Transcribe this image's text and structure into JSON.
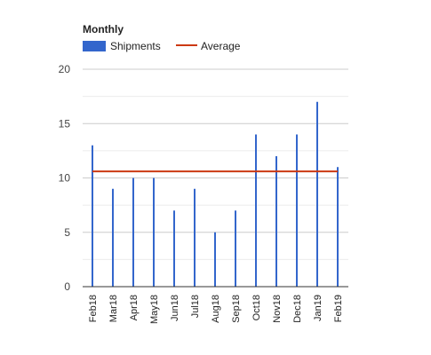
{
  "chart_data": {
    "type": "bar",
    "title": "Monthly",
    "categories": [
      "Feb18",
      "Mar18",
      "Apr18",
      "May18",
      "Jun18",
      "Jul18",
      "Aug18",
      "Sep18",
      "Oct18",
      "Nov18",
      "Dec18",
      "Jan19",
      "Feb19"
    ],
    "series": [
      {
        "name": "Shipments",
        "type": "bar",
        "color": "#3366cc",
        "values": [
          13,
          9,
          10,
          10,
          7,
          9,
          5,
          7,
          14,
          12,
          14,
          17,
          11
        ]
      },
      {
        "name": "Average",
        "type": "line",
        "color": "#cc3912",
        "values": [
          10.6,
          10.6,
          10.6,
          10.6,
          10.6,
          10.6,
          10.6,
          10.6,
          10.6,
          10.6,
          10.6,
          10.6,
          10.6
        ]
      }
    ],
    "ylim": [
      0,
      20
    ],
    "yticks": [
      0,
      5,
      10,
      15,
      20
    ],
    "grid": true,
    "legend_position": "top-left",
    "xlabel": "",
    "ylabel": ""
  }
}
